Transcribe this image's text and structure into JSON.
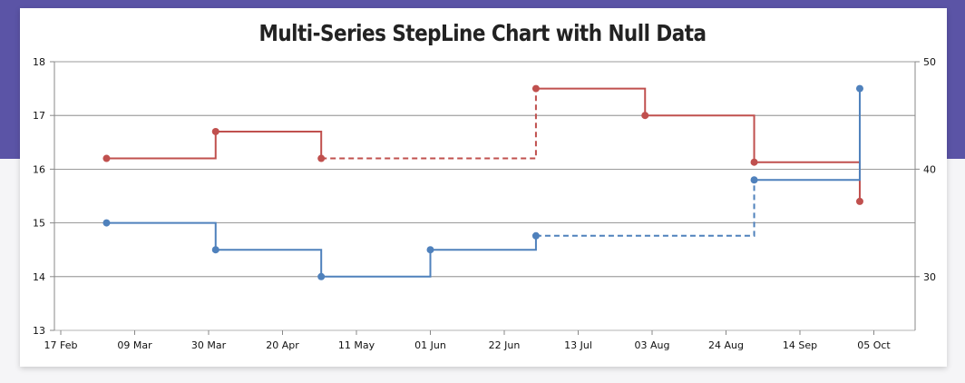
{
  "chart_data": {
    "type": "line",
    "subtype": "stepline",
    "title": "Multi-Series StepLine Chart with Null Data",
    "xlabel": "",
    "ylabel": "",
    "ylabel_secondary": "",
    "x_tick_labels": [
      "17 Feb",
      "09 Mar",
      "30 Mar",
      "20 Apr",
      "11 May",
      "01 Jun",
      "22 Jun",
      "13 Jul",
      "03 Aug",
      "24 Aug",
      "14 Sep",
      "05 Oct"
    ],
    "y_left": {
      "min": 13,
      "max": 18,
      "ticks": [
        13,
        14,
        15,
        16,
        17,
        18
      ]
    },
    "y_right": {
      "min": 25,
      "max": 50,
      "ticks": [
        30,
        40,
        50
      ]
    },
    "grid": true,
    "legend": "none",
    "series": [
      {
        "axis": "left",
        "color": "#c0504e",
        "points": [
          {
            "x": "2016-03-01",
            "y": 16.2
          },
          {
            "x": "2016-04-01",
            "y": 16.7
          },
          {
            "x": "2016-05-01",
            "y": 16.2
          },
          {
            "x": "2016-06-01",
            "y": null
          },
          {
            "x": "2016-07-01",
            "y": 17.5
          },
          {
            "x": "2016-08-01",
            "y": 17.0
          },
          {
            "x": "2016-09-01",
            "y": 16.13
          },
          {
            "x": "2016-10-01",
            "y": 15.4
          }
        ]
      },
      {
        "axis": "right",
        "color": "#4f81bc",
        "points": [
          {
            "x": "2016-03-01",
            "y": 35
          },
          {
            "x": "2016-04-01",
            "y": 32.5
          },
          {
            "x": "2016-05-01",
            "y": 30
          },
          {
            "x": "2016-06-01",
            "y": 32.5
          },
          {
            "x": "2016-07-01",
            "y": 33.8
          },
          {
            "x": "2016-08-01",
            "y": null
          },
          {
            "x": "2016-09-01",
            "y": 39
          },
          {
            "x": "2016-10-01",
            "y": 47.5
          }
        ]
      }
    ]
  }
}
